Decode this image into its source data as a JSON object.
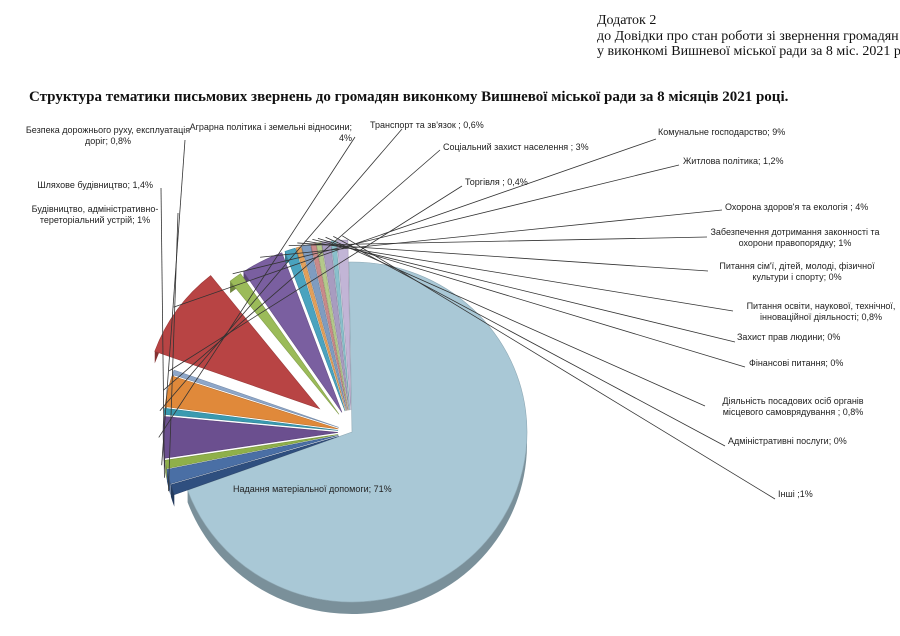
{
  "addendum": {
    "line1": "Додаток 2",
    "line2": "до Довідки про стан роботи зі звернення громадян",
    "line3": "у виконкомі Вишневої міської ради за  8 міс. 2021 р."
  },
  "chart_data": {
    "type": "pie",
    "title": "Структура тематики письмових звернень до громадян виконкому Вишневої міської ради за 8 місяців 2021 році.",
    "legend": "none",
    "slices": [
      {
        "name": "Надання матеріальної допомоги",
        "value": 71,
        "label": [
          "Надання матеріальної допомоги; 71%"
        ],
        "color": "#a9c8d6"
      },
      {
        "name": "Будівництво, адміністративно-тереторіальний устрій",
        "value": 1,
        "label": [
          "Будівництво, адміністративно-",
          "тереторіальний устрій; 1%"
        ],
        "color": "#2f4f7f"
      },
      {
        "name": "Шляхове будівництво",
        "value": 1.4,
        "label": [
          "Шляхове будівництво; 1,4%"
        ],
        "color": "#4a6fa5"
      },
      {
        "name": "Безпека дорожнього руху, експлуатація доріг",
        "value": 0.8,
        "label": [
          "Безпека дорожнього руху, експлуатація",
          "доріг; 0,8%"
        ],
        "color": "#8fb04a"
      },
      {
        "name": "Аграрна політика і земельні відносини",
        "value": 4,
        "label": [
          "Аграрна політика і земельні відносини;",
          "4%"
        ],
        "color": "#6b4f8f"
      },
      {
        "name": "Транспорт та зв'язок",
        "value": 0.6,
        "label": [
          "Транспорт та зв'язок ; 0,6%"
        ],
        "color": "#3a9ab0"
      },
      {
        "name": "Соціальний захист населення",
        "value": 3,
        "label": [
          "Соціальний захист населення ; 3%"
        ],
        "color": "#e0893a"
      },
      {
        "name": "Торгівля",
        "value": 0.4,
        "label": [
          "Торгівля ; 0,4%"
        ],
        "color": "#8ea7c9"
      },
      {
        "name": "Комунальне господарство",
        "value": 9,
        "label": [
          "Комунальне господарство; 9%"
        ],
        "color": "#b84444"
      },
      {
        "name": "Житлова політика",
        "value": 1.2,
        "label": [
          "Житлова політика; 1,2%"
        ],
        "color": "#9bbb59"
      },
      {
        "name": "Охорона здоров'я та екологія",
        "value": 4,
        "label": [
          "Охорона здоров'я та екологія ; 4%"
        ],
        "color": "#7a5fa0"
      },
      {
        "name": "Забезпечення дотримання законності та охорони правопорядку",
        "value": 1,
        "label": [
          "Забезпечення дотримання законності та",
          "охорони правопорядку; 1%"
        ],
        "color": "#4aa3bf"
      },
      {
        "name": "Питання сім'ї, дітей, молоді, фізичної культури і спорту",
        "value": 0,
        "label": [
          "Питання сім'ї, дітей, молоді, фізичної",
          "культури і спорту; 0%"
        ],
        "color": "#e3a05a"
      },
      {
        "name": "Питання освіти, наукової, технічної, інноваційної діяльності",
        "value": 0.8,
        "label": [
          "Питання освіти, наукової, технічної,",
          "інноваційної діяльності; 0,8%"
        ],
        "color": "#7f9cc0"
      },
      {
        "name": "Захист прав людини",
        "value": 0,
        "label": [
          "Захист прав людини; 0%"
        ],
        "color": "#c98a8a"
      },
      {
        "name": "Фінансові питання",
        "value": 0,
        "label": [
          "Фінансові питання; 0%"
        ],
        "color": "#b4c98a"
      },
      {
        "name": "Діяльність посадових осіб органів місцевого самоврядування",
        "value": 0.8,
        "label": [
          "Діяльність посадових осіб органів",
          "місцевого самоврядування ; 0,8%"
        ],
        "color": "#a89cc0"
      },
      {
        "name": "Адміністративні послуги",
        "value": 0,
        "label": [
          "Адміністративні послуги; 0%"
        ],
        "color": "#8ac0cc"
      },
      {
        "name": "Інші",
        "value": 1,
        "label": [
          "Інші ;1%"
        ],
        "color": "#c2b5d6"
      }
    ]
  }
}
